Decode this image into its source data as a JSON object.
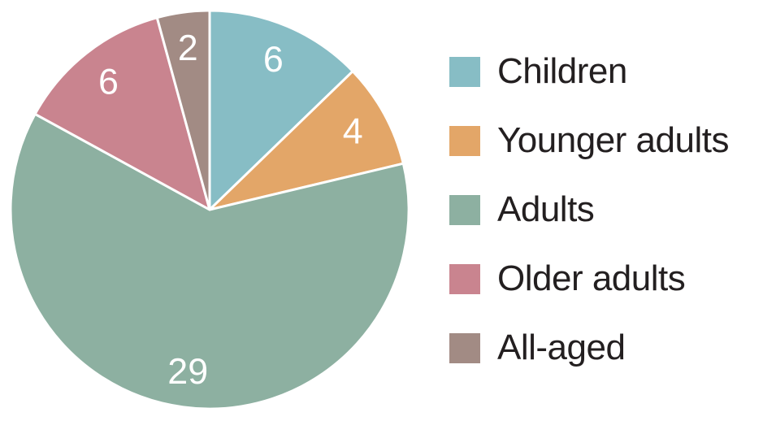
{
  "chart_data": {
    "type": "pie",
    "title": "",
    "categories": [
      "Children",
      "Younger adults",
      "Adults",
      "Older adults",
      "All-aged"
    ],
    "values": [
      6,
      4,
      29,
      6,
      2
    ],
    "colors": [
      "#87bdc5",
      "#e3a668",
      "#8db0a1",
      "#c9848f",
      "#a28b84"
    ],
    "value_label_color": "#ffffff",
    "legend_text_color": "#231f20",
    "start_angle_deg": 0,
    "direction": "clockwise",
    "legend_position": "right",
    "slice_border_color": "#ffffff",
    "value_labels": [
      "6",
      "4",
      "29",
      "6",
      "2"
    ],
    "label_radius_fraction": 0.82
  }
}
